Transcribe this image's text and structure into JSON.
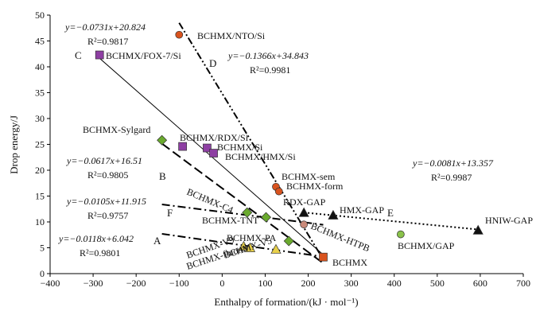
{
  "chart_data": {
    "type": "scatter",
    "xlabel": "Enthalpy of formation/(kJ · mol⁻¹)",
    "ylabel": "Drop energy/J",
    "xlim": [
      -400,
      700
    ],
    "ylim": [
      0,
      50
    ],
    "xticks": [
      -400,
      -300,
      -200,
      -100,
      0,
      100,
      200,
      300,
      400,
      500,
      600,
      700
    ],
    "yticks": [
      0,
      5,
      10,
      15,
      20,
      25,
      30,
      35,
      40,
      45,
      50
    ],
    "grid": false,
    "points": [
      {
        "label": "BCHMX/NTO/Si",
        "x": -100,
        "y": 46.2,
        "shape": "circle",
        "color": "#d9531e"
      },
      {
        "label": "BCHMX/FOX-7/Si",
        "x": -285,
        "y": 42.3,
        "shape": "square",
        "color": "#8e3fa3"
      },
      {
        "label": "BCHMX-Sylgard",
        "x": -140,
        "y": 25.8,
        "shape": "diamond",
        "color": "#6aaa2e"
      },
      {
        "label": "BCHMX/RDX/Si",
        "x": -92,
        "y": 24.6,
        "shape": "square",
        "color": "#8e3fa3"
      },
      {
        "label": "BCHMX/Si",
        "x": -35,
        "y": 24.3,
        "shape": "square",
        "color": "#8e3fa3"
      },
      {
        "label": "BCHMX/HMX/Si",
        "x": -20,
        "y": 23.3,
        "shape": "square",
        "color": "#8e3fa3"
      },
      {
        "label": "BCHMX-sem",
        "x": 125,
        "y": 16.8,
        "shape": "circle",
        "color": "#d9531e"
      },
      {
        "label": "BCHMX-form",
        "x": 132,
        "y": 15.9,
        "shape": "circle",
        "color": "#d9531e"
      },
      {
        "label": "RDX-GAP",
        "x": 190,
        "y": 11.8,
        "shape": "triangle",
        "color": "#111111"
      },
      {
        "label": "HMX-GAP",
        "x": 258,
        "y": 11.3,
        "shape": "triangle",
        "color": "#111111"
      },
      {
        "label": "HNIW-GAP",
        "x": 595,
        "y": 8.4,
        "shape": "triangle",
        "color": "#111111"
      },
      {
        "label": "BCHMX/GAP",
        "x": 415,
        "y": 7.6,
        "shape": "circle",
        "color": "#8ac24a"
      },
      {
        "label": "BCHMX-C4",
        "x": 58,
        "y": 11.8,
        "shape": "diamond",
        "color": "#6aaa2e"
      },
      {
        "label": "BCHMX-TNT",
        "x": 102,
        "y": 10.9,
        "shape": "diamond",
        "color": "#6aaa2e"
      },
      {
        "label": "BCHMX-HTPB",
        "x": 190,
        "y": 9.5,
        "shape": "circle",
        "color": "#c98a7a"
      },
      {
        "label": "BCHMX-PA",
        "x": 155,
        "y": 6.3,
        "shape": "diamond",
        "color": "#6aaa2e"
      },
      {
        "label": "BCHMX-V9",
        "x": 50,
        "y": 5.3,
        "shape": "triangle",
        "color": "#e8d04a"
      },
      {
        "label": "BCHMX-fluorel",
        "x": 65,
        "y": 5.0,
        "shape": "triangle",
        "color": "#e8d04a"
      },
      {
        "label": "BCHMX-V5",
        "x": 125,
        "y": 4.7,
        "shape": "triangle",
        "color": "#e8d04a"
      },
      {
        "label": "BCHMX",
        "x": 235,
        "y": 3.2,
        "shape": "square",
        "color": "#d9531e"
      }
    ],
    "fits": [
      {
        "id": "C",
        "slope": -0.0731,
        "intercept": 20.824,
        "x_from": -285,
        "x_to": 235,
        "style": "solid",
        "equation": "y=−0.0731x+20.824",
        "r2": "R²=0.9817"
      },
      {
        "id": "D",
        "slope": -0.1366,
        "intercept": 34.843,
        "x_from": -100,
        "x_to": 235,
        "style": "dashdotdot",
        "equation": "y=−0.1366x+34.843",
        "r2": "R²=0.9981"
      },
      {
        "id": "B",
        "slope": -0.0617,
        "intercept": 16.51,
        "x_from": -140,
        "x_to": 235,
        "style": "longdash",
        "equation": "y=−0.0617x+16.51",
        "r2": "R²=0.9805"
      },
      {
        "id": "F",
        "slope": -0.0105,
        "intercept": 11.915,
        "x_from": -140,
        "x_to": 235,
        "style": "dashdot",
        "equation": "y=−0.0105x+11.915",
        "r2": "R²=0.9757"
      },
      {
        "id": "A",
        "slope": -0.0118,
        "intercept": 6.042,
        "x_from": -140,
        "x_to": 235,
        "style": "dashdot",
        "equation": "y=−0.0118x+6.042",
        "r2": "R²=0.9801"
      },
      {
        "id": "E",
        "slope": -0.0081,
        "intercept": 13.357,
        "x_from": 190,
        "x_to": 595,
        "style": "dotted",
        "equation": "y=−0.0081x+13.357",
        "r2": "R²=0.9987"
      }
    ]
  }
}
